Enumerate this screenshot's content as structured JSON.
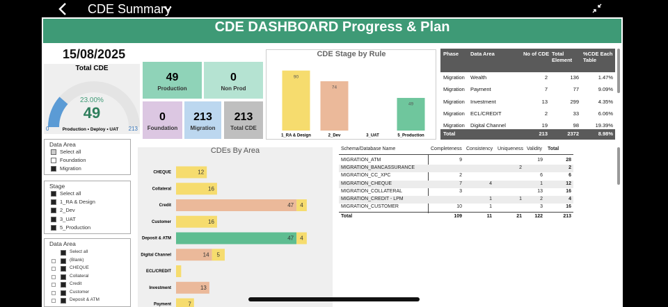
{
  "topbar": {
    "title": "CDE Summary"
  },
  "header": {
    "title": "CDE DASHBOARD Progress & Plan"
  },
  "date": "15/08/2025",
  "total_cde": {
    "title": "Total CDE",
    "percent_label": "23.00%",
    "value": 49,
    "min": 0,
    "max": 213,
    "caption": "Production • Deploy • UAT",
    "color": "#5b9bd5"
  },
  "cards": [
    {
      "value": 49,
      "label": "Production",
      "color": "#8fd3b8"
    },
    {
      "value": 0,
      "label": "Non Prod",
      "color": "#b5e3d2"
    },
    {
      "value": 0,
      "label": "Foundation",
      "color": "#dcc7e2"
    },
    {
      "value": 213,
      "label": "Migration",
      "color": "#bcd7ef"
    },
    {
      "value": 213,
      "label": "Total CDE",
      "color": "#bfbfbf"
    }
  ],
  "chart_data": [
    {
      "type": "bar",
      "title": "CDE Stage by Rule",
      "categories": [
        "1_RA & Design",
        "2_Dev",
        "3_UAT",
        "5_Production"
      ],
      "values": [
        90,
        74,
        null,
        49
      ],
      "colors": [
        "#f6dc6e",
        "#ebb99a",
        "#f6dc6e",
        "#6fc69d"
      ],
      "ylim": [
        0,
        100
      ]
    },
    {
      "type": "hbar",
      "title": "CDEs By Area",
      "categories": [
        "CHEQUE",
        "Collateral",
        "Credit",
        "Customer",
        "Deposit & ATM",
        "Digital Channel",
        "ECL/CREDIT",
        "Investment",
        "Payment"
      ],
      "series": [
        {
          "color": "#ebb99a",
          "values": [
            null,
            null,
            47,
            null,
            null,
            14,
            null,
            13,
            null
          ]
        },
        {
          "color": "#5ebd91",
          "values": [
            null,
            null,
            null,
            null,
            47,
            null,
            null,
            null,
            null
          ]
        },
        {
          "color": "#f6dc6e",
          "values": [
            12,
            16,
            4,
            16,
            4,
            5,
            2,
            null,
            7
          ]
        }
      ],
      "xlim": [
        0,
        60
      ]
    }
  ],
  "slicers": [
    {
      "title": "Data Area",
      "items": [
        "Select all",
        "Foundation",
        "Migration"
      ],
      "states": [
        "partial",
        "off",
        "on"
      ],
      "expanders": false
    },
    {
      "title": "Stage",
      "items": [
        "Select all",
        "1_RA & Design",
        "2_Dev",
        "3_UAT",
        "5_Production"
      ],
      "states": [
        "on",
        "on",
        "on",
        "on",
        "on"
      ],
      "expanders": false
    },
    {
      "title": "Data Area",
      "items": [
        "Select all",
        "(Blank)",
        "CHEQUE",
        "Collateral",
        "Credit",
        "Customer",
        "Deposit & ATM"
      ],
      "states": [
        "on",
        "on",
        "on",
        "on",
        "on",
        "on",
        "on"
      ],
      "expanders": true
    }
  ],
  "phase_table": {
    "columns": [
      "Phase",
      "Data Area",
      "No of CDE",
      "Total Element",
      "%CDE Each Table"
    ],
    "rows": [
      [
        "Migration",
        "Wealth",
        2,
        136,
        "1.47%"
      ],
      [
        "Migration",
        "Payment",
        7,
        77,
        "9.09%"
      ],
      [
        "Migration",
        "Investment",
        13,
        299,
        "4.35%"
      ],
      [
        "Migration",
        "ECL/CREDIT",
        2,
        33,
        "6.06%"
      ],
      [
        "Migration",
        "Digital Channel",
        19,
        98,
        "19.39%"
      ]
    ],
    "total": [
      "Total",
      null,
      213,
      2372,
      "8.98%"
    ]
  },
  "schema_table": {
    "columns": [
      "Schema/Database Name",
      "Completeness",
      "Consistency",
      "Uniqueness",
      "Validity",
      "Total"
    ],
    "rows": [
      [
        "MIGRATION_ATM",
        9,
        null,
        null,
        19,
        28
      ],
      [
        "MIGRATION_BANCASSURANCE",
        null,
        null,
        2,
        null,
        2
      ],
      [
        "MIGRATION_CC_XPC",
        2,
        null,
        null,
        6,
        6
      ],
      [
        "MIGRATION_CHEQUE",
        7,
        4,
        null,
        1,
        12
      ],
      [
        "MIGRATION_COLLATERAL",
        3,
        null,
        null,
        13,
        16
      ],
      [
        "MIGRATION_CREDIT - LPM",
        null,
        1,
        1,
        2,
        4
      ],
      [
        "MIGRATION_CUSTOMER",
        10,
        1,
        null,
        3,
        16
      ]
    ],
    "total": [
      "Total",
      109,
      11,
      21,
      122,
      213
    ]
  }
}
